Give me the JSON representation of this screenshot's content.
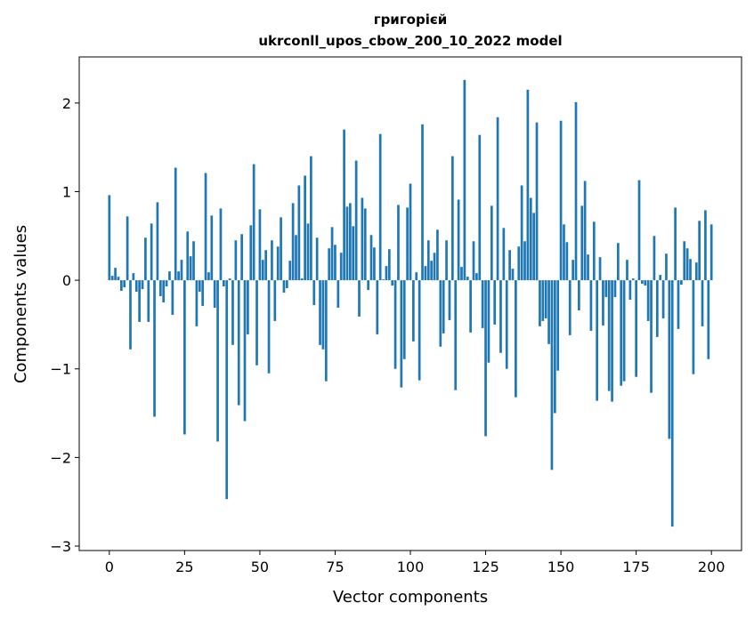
{
  "chart_data": {
    "type": "bar",
    "title": "григорієй",
    "subtitle": "ukrconll_upos_cbow_200_10_2022 model",
    "xlabel": "Vector components",
    "ylabel": "Components values",
    "xlim": [
      -10,
      210
    ],
    "ylim": [
      -3.05,
      2.52
    ],
    "xticks": [
      0,
      25,
      50,
      75,
      100,
      125,
      150,
      175,
      200
    ],
    "xtick_labels": [
      "0",
      "25",
      "50",
      "75",
      "100",
      "125",
      "150",
      "175",
      "200"
    ],
    "yticks": [
      -3,
      -2,
      -1,
      0,
      1,
      2
    ],
    "ytick_labels": [
      "−3",
      "−2",
      "−1",
      "0",
      "1",
      "2"
    ],
    "grid": false,
    "bar_color": "#1f77b4",
    "values": [
      0.96,
      0.05,
      0.14,
      0.04,
      -0.12,
      -0.08,
      0.72,
      -0.78,
      0.08,
      -0.13,
      -0.47,
      -0.1,
      0.48,
      -0.47,
      0.64,
      -1.54,
      0.88,
      -0.18,
      -0.25,
      -0.07,
      0.1,
      -0.39,
      1.27,
      0.1,
      0.23,
      -1.74,
      0.55,
      0.27,
      0.44,
      -0.52,
      -0.13,
      -0.29,
      1.21,
      0.09,
      0.73,
      -0.31,
      -1.82,
      0.81,
      -0.07,
      -2.47,
      0.02,
      -0.73,
      0.45,
      -1.41,
      0.52,
      -1.59,
      -0.61,
      0.62,
      1.31,
      -0.96,
      0.8,
      0.23,
      0.34,
      -1.05,
      0.45,
      -0.46,
      0.38,
      0.71,
      -0.14,
      -0.09,
      0.22,
      0.87,
      0.51,
      1.07,
      0.02,
      1.18,
      0.64,
      1.4,
      -0.28,
      0.48,
      -0.73,
      -0.78,
      -1.14,
      0.36,
      0.6,
      0.4,
      -0.31,
      0.31,
      1.7,
      0.83,
      0.87,
      0.61,
      1.35,
      -0.41,
      0.93,
      0.81,
      -0.11,
      0.51,
      0.37,
      -0.61,
      1.65,
      0.01,
      0.16,
      0.35,
      -0.06,
      -1.0,
      0.85,
      -1.21,
      -0.89,
      0.82,
      1.09,
      -0.69,
      0.09,
      -1.13,
      1.76,
      0.16,
      0.45,
      0.22,
      0.31,
      0.57,
      -0.75,
      -0.6,
      0.45,
      -0.45,
      1.4,
      -1.24,
      0.91,
      0.15,
      2.26,
      0.04,
      -0.59,
      0.44,
      0.08,
      1.64,
      -0.54,
      -1.76,
      -0.93,
      0.84,
      -0.5,
      1.84,
      -0.82,
      0.59,
      -1.0,
      0.34,
      0.13,
      -1.32,
      0.38,
      1.07,
      0.44,
      2.15,
      0.93,
      0.76,
      1.78,
      -0.52,
      -0.46,
      -0.43,
      -0.72,
      -2.14,
      -1.5,
      -1.02,
      1.8,
      0.63,
      0.43,
      -0.62,
      0.23,
      2.01,
      -0.34,
      0.84,
      1.12,
      0.29,
      -0.57,
      0.66,
      -1.36,
      0.26,
      -0.51,
      -0.19,
      -1.25,
      -1.37,
      -0.19,
      0.42,
      -1.19,
      -1.14,
      0.23,
      -0.22,
      0.02,
      -1.09,
      1.13,
      -0.04,
      -0.06,
      -0.46,
      -1.27,
      0.5,
      -0.64,
      0.06,
      -0.43,
      0.3,
      -1.79,
      -2.78,
      0.82,
      -0.55,
      -0.05,
      0.44,
      0.36,
      0.24,
      -1.06,
      0.2,
      0.67,
      -0.52,
      0.79,
      -0.89,
      0.63
    ]
  }
}
